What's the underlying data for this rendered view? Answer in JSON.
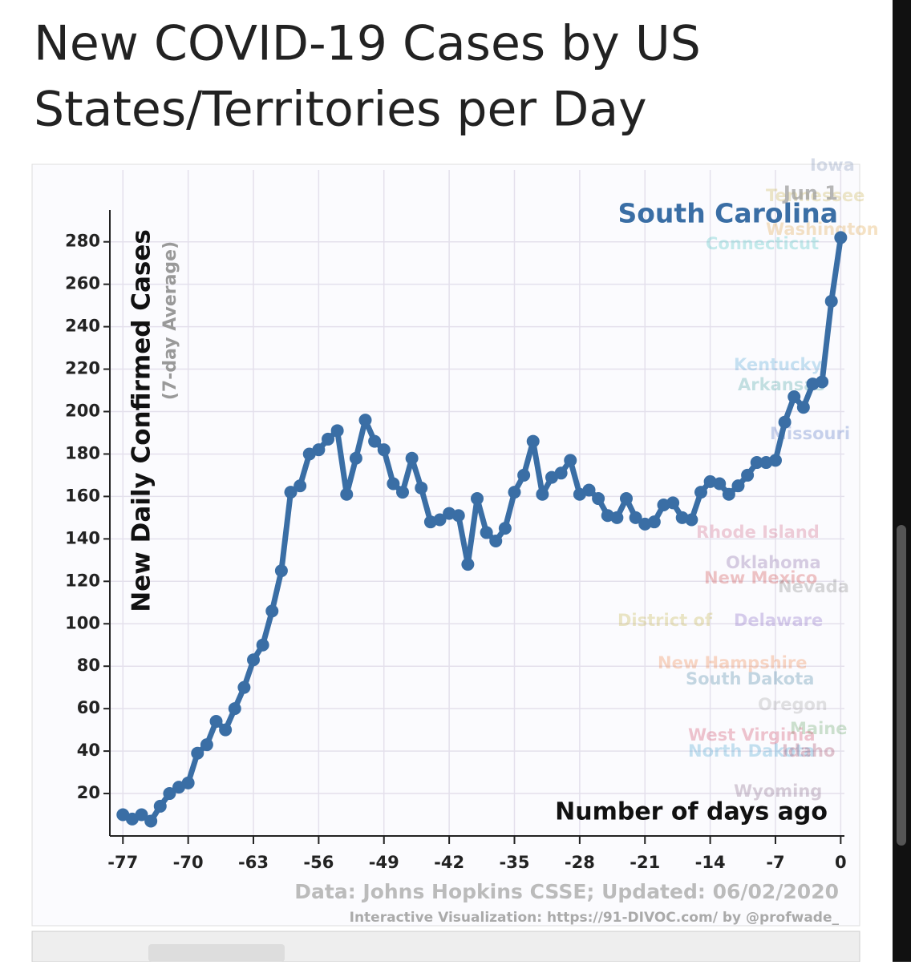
{
  "chart_data": {
    "type": "line",
    "title": "New COVID-19 Cases by US States/Territories per Day",
    "y_label": "New Daily Confirmed Cases",
    "y_sublabel": "(7-day Average)",
    "x_label": "Number of days ago",
    "date_label": "Jun 1",
    "source": "Data: Johns Hopkins CSSE; Updated: 06/02/2020",
    "credit": "Interactive Visualization: https://91-DIVOC.com/ by @profwade_",
    "background_labels": [
      "Iowa",
      "Tennessee",
      "Washington",
      "Connecticut",
      "Kentucky",
      "Arkansas",
      "Missouri",
      "Rhode Island",
      "Oklahoma",
      "New Mexico",
      "Nevada",
      "District of",
      "Delaware",
      "New Hampshire",
      "South Dakota",
      "Oregon",
      "Maine",
      "West Virginia",
      "North Dakota",
      "Idaho",
      "Wyoming"
    ],
    "x": [
      -77,
      -76,
      -75,
      -74,
      -73,
      -72,
      -71,
      -70,
      -69,
      -68,
      -67,
      -66,
      -65,
      -64,
      -63,
      -62,
      -61,
      -60,
      -59,
      -58,
      -57,
      -56,
      -55,
      -54,
      -53,
      -52,
      -51,
      -50,
      -49,
      -48,
      -47,
      -46,
      -45,
      -44,
      -43,
      -42,
      -41,
      -40,
      -39,
      -38,
      -37,
      -36,
      -35,
      -34,
      -33,
      -32,
      -31,
      -30,
      -29,
      -28,
      -27,
      -26,
      -25,
      -24,
      -23,
      -22,
      -21,
      -20,
      -19,
      -18,
      -17,
      -16,
      -15,
      -14,
      -13,
      -12,
      -11,
      -10,
      -9,
      -8,
      -7,
      -6,
      -5,
      -4,
      -3,
      -2,
      -1,
      0
    ],
    "series": [
      {
        "name": "South Carolina",
        "color": "#3a6ea5",
        "values": [
          10,
          8,
          10,
          7,
          14,
          20,
          23,
          25,
          39,
          43,
          54,
          50,
          60,
          70,
          83,
          90,
          106,
          125,
          162,
          165,
          180,
          182,
          187,
          191,
          161,
          178,
          196,
          186,
          182,
          166,
          162,
          178,
          164,
          148,
          149,
          152,
          151,
          128,
          159,
          143,
          139,
          145,
          162,
          170,
          186,
          161,
          169,
          171,
          177,
          161,
          163,
          159,
          151,
          150,
          159,
          150,
          147,
          148,
          156,
          157,
          150,
          149,
          162,
          167,
          166,
          161,
          165,
          170,
          176,
          176,
          177,
          195,
          207,
          202,
          213,
          214,
          252,
          282
        ]
      }
    ],
    "xlim": [
      -78.4,
      0.4
    ],
    "ylim": [
      0,
      295
    ],
    "xticks": [
      -77,
      -70,
      -63,
      -56,
      -49,
      -42,
      -35,
      -28,
      -21,
      -14,
      -7,
      0
    ],
    "yticks": [
      20,
      40,
      60,
      80,
      100,
      120,
      140,
      160,
      180,
      200,
      220,
      240,
      260,
      280
    ],
    "grid": true
  }
}
